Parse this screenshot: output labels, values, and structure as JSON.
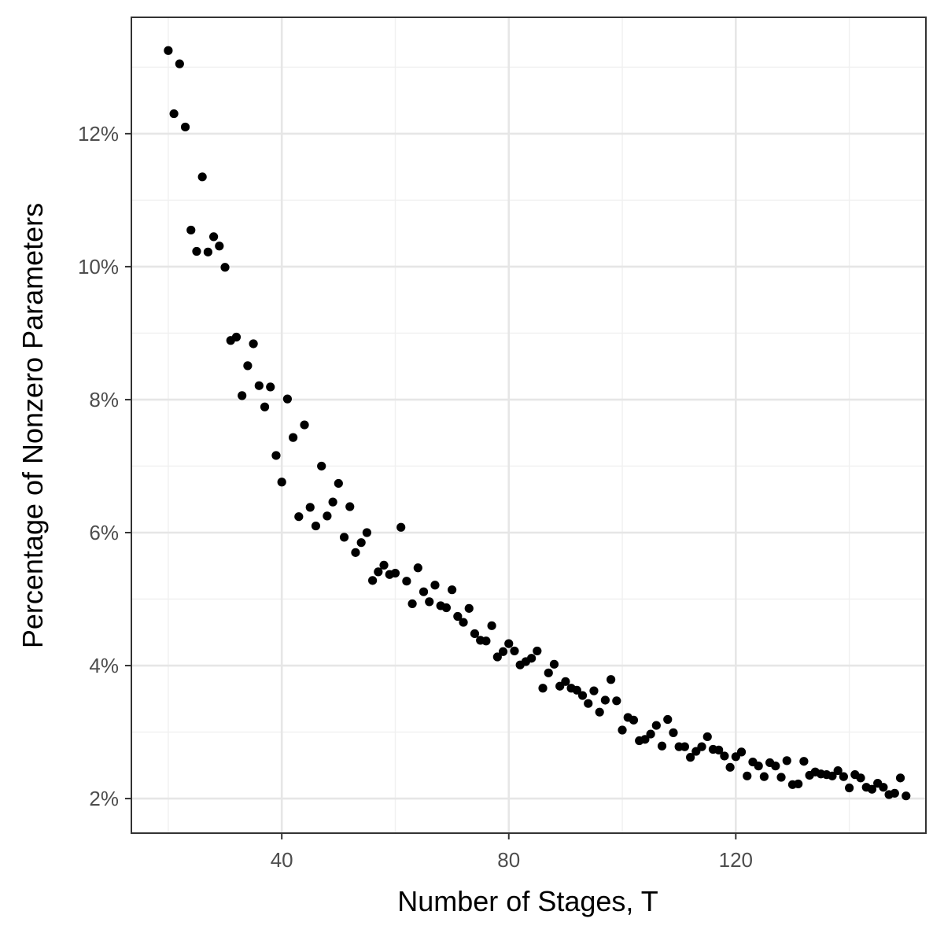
{
  "chart_data": {
    "type": "scatter",
    "xlabel": "Number of Stages, T",
    "ylabel": "Percentage of Nonzero Parameters",
    "xlim": [
      13.5,
      153.5
    ],
    "ylim": [
      0.0148,
      0.1375
    ],
    "x_ticks": [
      40,
      80,
      120
    ],
    "x_minor_ticks": [
      20,
      60,
      100,
      140
    ],
    "y_ticks": [
      0.02,
      0.04,
      0.06,
      0.08,
      0.1,
      0.12
    ],
    "y_minor_ticks": [
      0.03,
      0.05,
      0.07,
      0.09,
      0.11,
      0.13
    ],
    "x_tick_labels": [
      "40",
      "80",
      "120"
    ],
    "y_tick_labels": [
      "2%",
      "4%",
      "6%",
      "8%",
      "10%",
      "12%"
    ],
    "grid": true,
    "legend": "none",
    "point_color": "#000000",
    "x": [
      20,
      21,
      22,
      23,
      24,
      25,
      26,
      27,
      28,
      29,
      30,
      31,
      32,
      33,
      34,
      35,
      36,
      37,
      38,
      39,
      40,
      41,
      42,
      43,
      44,
      45,
      46,
      47,
      48,
      49,
      50,
      51,
      52,
      53,
      54,
      55,
      56,
      57,
      58,
      59,
      60,
      61,
      62,
      63,
      64,
      65,
      66,
      67,
      68,
      69,
      70,
      71,
      72,
      73,
      74,
      75,
      76,
      77,
      78,
      79,
      80,
      81,
      82,
      83,
      84,
      85,
      86,
      87,
      88,
      89,
      90,
      91,
      92,
      93,
      94,
      95,
      96,
      97,
      98,
      99,
      100,
      101,
      102,
      103,
      104,
      105,
      106,
      107,
      108,
      109,
      110,
      111,
      112,
      113,
      114,
      115,
      116,
      117,
      118,
      119,
      120,
      121,
      122,
      123,
      124,
      125,
      126,
      127,
      128,
      129,
      130,
      131,
      132,
      133,
      134,
      135,
      136,
      137,
      138,
      139,
      140,
      141,
      142,
      143,
      144,
      145,
      146,
      147,
      148,
      149,
      150
    ],
    "y": [
      0.1325,
      0.123,
      0.1305,
      0.121,
      0.1055,
      0.1023,
      0.1135,
      0.1022,
      0.1045,
      0.1031,
      0.0999,
      0.0889,
      0.0894,
      0.0806,
      0.0851,
      0.0884,
      0.0821,
      0.0789,
      0.0819,
      0.0716,
      0.0676,
      0.0801,
      0.0743,
      0.0624,
      0.0762,
      0.0638,
      0.061,
      0.07,
      0.0625,
      0.0646,
      0.0674,
      0.0593,
      0.0639,
      0.057,
      0.0585,
      0.06,
      0.0528,
      0.0541,
      0.0551,
      0.0537,
      0.0539,
      0.0608,
      0.0527,
      0.0493,
      0.0547,
      0.0511,
      0.0496,
      0.0521,
      0.049,
      0.0487,
      0.0514,
      0.0474,
      0.0465,
      0.0486,
      0.0448,
      0.0438,
      0.0437,
      0.046,
      0.0413,
      0.0421,
      0.0433,
      0.0422,
      0.0401,
      0.0406,
      0.0411,
      0.0422,
      0.0366,
      0.0389,
      0.0402,
      0.0369,
      0.0376,
      0.0366,
      0.0363,
      0.0355,
      0.0343,
      0.0362,
      0.033,
      0.0348,
      0.0379,
      0.0347,
      0.0303,
      0.0322,
      0.0318,
      0.0287,
      0.0289,
      0.0297,
      0.031,
      0.0279,
      0.0319,
      0.0299,
      0.0278,
      0.0278,
      0.0262,
      0.0271,
      0.0278,
      0.0293,
      0.0274,
      0.0273,
      0.0264,
      0.0247,
      0.0263,
      0.027,
      0.0234,
      0.0255,
      0.0249,
      0.0233,
      0.0254,
      0.0249,
      0.0232,
      0.0257,
      0.0221,
      0.0222,
      0.0256,
      0.0235,
      0.024,
      0.0237,
      0.0236,
      0.0234,
      0.0242,
      0.0233,
      0.0216,
      0.0236,
      0.0231,
      0.0217,
      0.0214,
      0.0223,
      0.0217,
      0.0206,
      0.0208,
      0.0231,
      0.0204
    ]
  }
}
